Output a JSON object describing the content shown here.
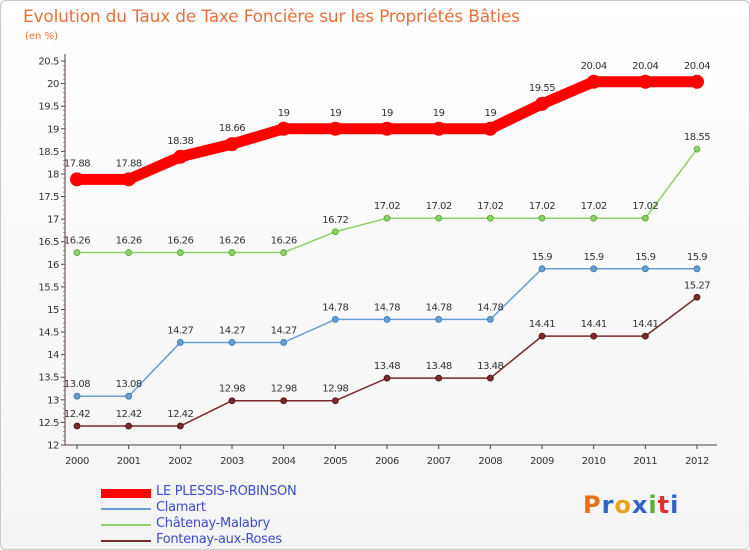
{
  "header": {
    "title": "Evolution du Taux de Taxe Foncière sur les Propriétés Bâties",
    "subtitle": "(en %)"
  },
  "logo": {
    "letters": [
      "P",
      "r",
      "o",
      "x",
      "i",
      "t",
      "i"
    ],
    "colors": [
      "#e8701a",
      "#2f62c8",
      "#e8a41a",
      "#2f62c8",
      "#58b030",
      "#e03030",
      "#2f62c8"
    ]
  },
  "chart_data": {
    "type": "line",
    "title": "Evolution du Taux de Taxe Foncière sur les Propriétés Bâties",
    "ylabel": "(en %)",
    "x": [
      "2000",
      "2001",
      "2002",
      "2003",
      "2004",
      "2005",
      "2006",
      "2007",
      "2008",
      "2009",
      "2010",
      "2011",
      "2012"
    ],
    "ylim": [
      12,
      20.5
    ],
    "yticks": [
      "12",
      "12.5",
      "13",
      "13.5",
      "14",
      "14.5",
      "15",
      "15.5",
      "16",
      "16.5",
      "17",
      "17.5",
      "18",
      "18.5",
      "19",
      "19.5",
      "20",
      "20.5"
    ],
    "grid": false,
    "legend": "bottom-left",
    "series": [
      {
        "name": "LE PLESSIS-ROBINSON",
        "color": "#ff0000",
        "values": [
          17.88,
          17.88,
          18.38,
          18.66,
          19,
          19,
          19,
          19,
          19,
          19.55,
          20.04,
          20.04,
          20.04
        ],
        "labels": [
          "17.88",
          "17.88",
          "18.38",
          "18.66",
          "19",
          "19",
          "19",
          "19",
          "19",
          "19.55",
          "20.04",
          "20.04",
          "20.04"
        ]
      },
      {
        "name": "Clamart",
        "color": "#6a9ed2",
        "values": [
          13.08,
          13.08,
          14.27,
          14.27,
          14.27,
          14.78,
          14.78,
          14.78,
          14.78,
          15.9,
          15.9,
          15.9,
          15.9
        ],
        "labels": [
          "13.08",
          "13.08",
          "14.27",
          "14.27",
          "14.27",
          "14.78",
          "14.78",
          "14.78",
          "14.78",
          "15.9",
          "15.9",
          "15.9",
          "15.9"
        ]
      },
      {
        "name": "Châtenay-Malabry",
        "color": "#8fd06a",
        "values": [
          16.26,
          16.26,
          16.26,
          16.26,
          16.26,
          16.72,
          17.02,
          17.02,
          17.02,
          17.02,
          17.02,
          17.02,
          18.55
        ],
        "labels": [
          "16.26",
          "16.26",
          "16.26",
          "16.26",
          "16.26",
          "16.72",
          "17.02",
          "17.02",
          "17.02",
          "17.02",
          "17.02",
          "17.02",
          "18.55"
        ]
      },
      {
        "name": "Fontenay-aux-Roses",
        "color": "#7a2a2a",
        "values": [
          12.42,
          12.42,
          12.42,
          12.98,
          12.98,
          12.98,
          13.48,
          13.48,
          13.48,
          14.41,
          14.41,
          14.41,
          15.27
        ],
        "labels": [
          "12.42",
          "12.42",
          "12.42",
          "12.98",
          "12.98",
          "12.98",
          "13.48",
          "13.48",
          "13.48",
          "14.41",
          "14.41",
          "14.41",
          "15.27"
        ]
      }
    ]
  }
}
